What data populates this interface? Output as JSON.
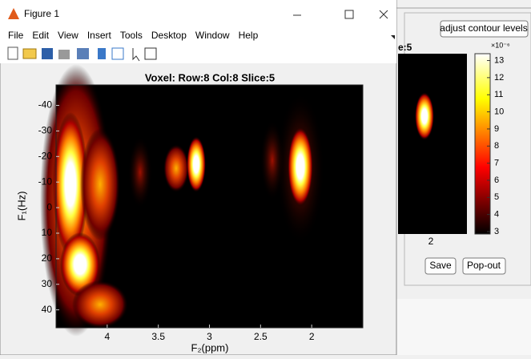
{
  "window": {
    "title": "Figure 1"
  },
  "menu": [
    "File",
    "Edit",
    "View",
    "Insert",
    "Tools",
    "Desktop",
    "Window",
    "Help"
  ],
  "axes": {
    "title": "Voxel: Row:8 Col:8 Slice:5",
    "xlabel": "F₂(ppm)",
    "ylabel": "F₁(Hz)",
    "xlim": [
      4.5,
      1.5
    ],
    "xticks": [
      4,
      3.5,
      3,
      2.5,
      2
    ],
    "ylim": [
      -48,
      47
    ],
    "yticks": [
      -40,
      -30,
      -20,
      -10,
      0,
      10,
      20,
      30,
      40
    ]
  },
  "colorbar": {
    "exponent": "×10⁻⁶",
    "lim": [
      2.86,
      13.4
    ],
    "ticks": [
      3,
      4,
      5,
      6,
      7,
      8,
      9,
      10,
      11,
      12,
      13
    ]
  },
  "side_panel": {
    "adjust_button": "adjust contour levels",
    "slice_label": "e:5",
    "x_tick": "2",
    "save_button": "Save",
    "popout_button": "Pop-out"
  }
}
